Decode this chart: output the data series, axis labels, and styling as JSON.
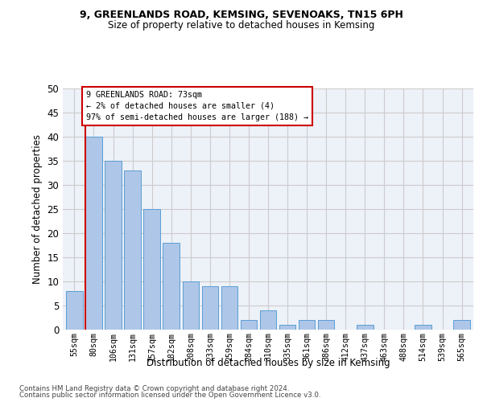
{
  "title1": "9, GREENLANDS ROAD, KEMSING, SEVENOAKS, TN15 6PH",
  "title2": "Size of property relative to detached houses in Kemsing",
  "xlabel": "Distribution of detached houses by size in Kemsing",
  "ylabel": "Number of detached properties",
  "bar_labels": [
    "55sqm",
    "80sqm",
    "106sqm",
    "131sqm",
    "157sqm",
    "182sqm",
    "208sqm",
    "233sqm",
    "259sqm",
    "284sqm",
    "310sqm",
    "335sqm",
    "361sqm",
    "386sqm",
    "412sqm",
    "437sqm",
    "463sqm",
    "488sqm",
    "514sqm",
    "539sqm",
    "565sqm"
  ],
  "bar_values": [
    8,
    40,
    35,
    33,
    25,
    18,
    10,
    9,
    9,
    2,
    4,
    1,
    2,
    2,
    0,
    1,
    0,
    0,
    1,
    0,
    2
  ],
  "bar_color": "#aec6e8",
  "bar_edge_color": "#5a9fd4",
  "highlight_index": 1,
  "highlight_color": "#cc0000",
  "annotation_line1": "9 GREENLANDS ROAD: 73sqm",
  "annotation_line2": "← 2% of detached houses are smaller (4)",
  "annotation_line3": "97% of semi-detached houses are larger (188) →",
  "annotation_box_color": "#cc0000",
  "ylim": [
    0,
    50
  ],
  "yticks": [
    0,
    5,
    10,
    15,
    20,
    25,
    30,
    35,
    40,
    45,
    50
  ],
  "grid_color": "#cccccc",
  "bg_color": "#edf1f8",
  "footer1": "Contains HM Land Registry data © Crown copyright and database right 2024.",
  "footer2": "Contains public sector information licensed under the Open Government Licence v3.0."
}
